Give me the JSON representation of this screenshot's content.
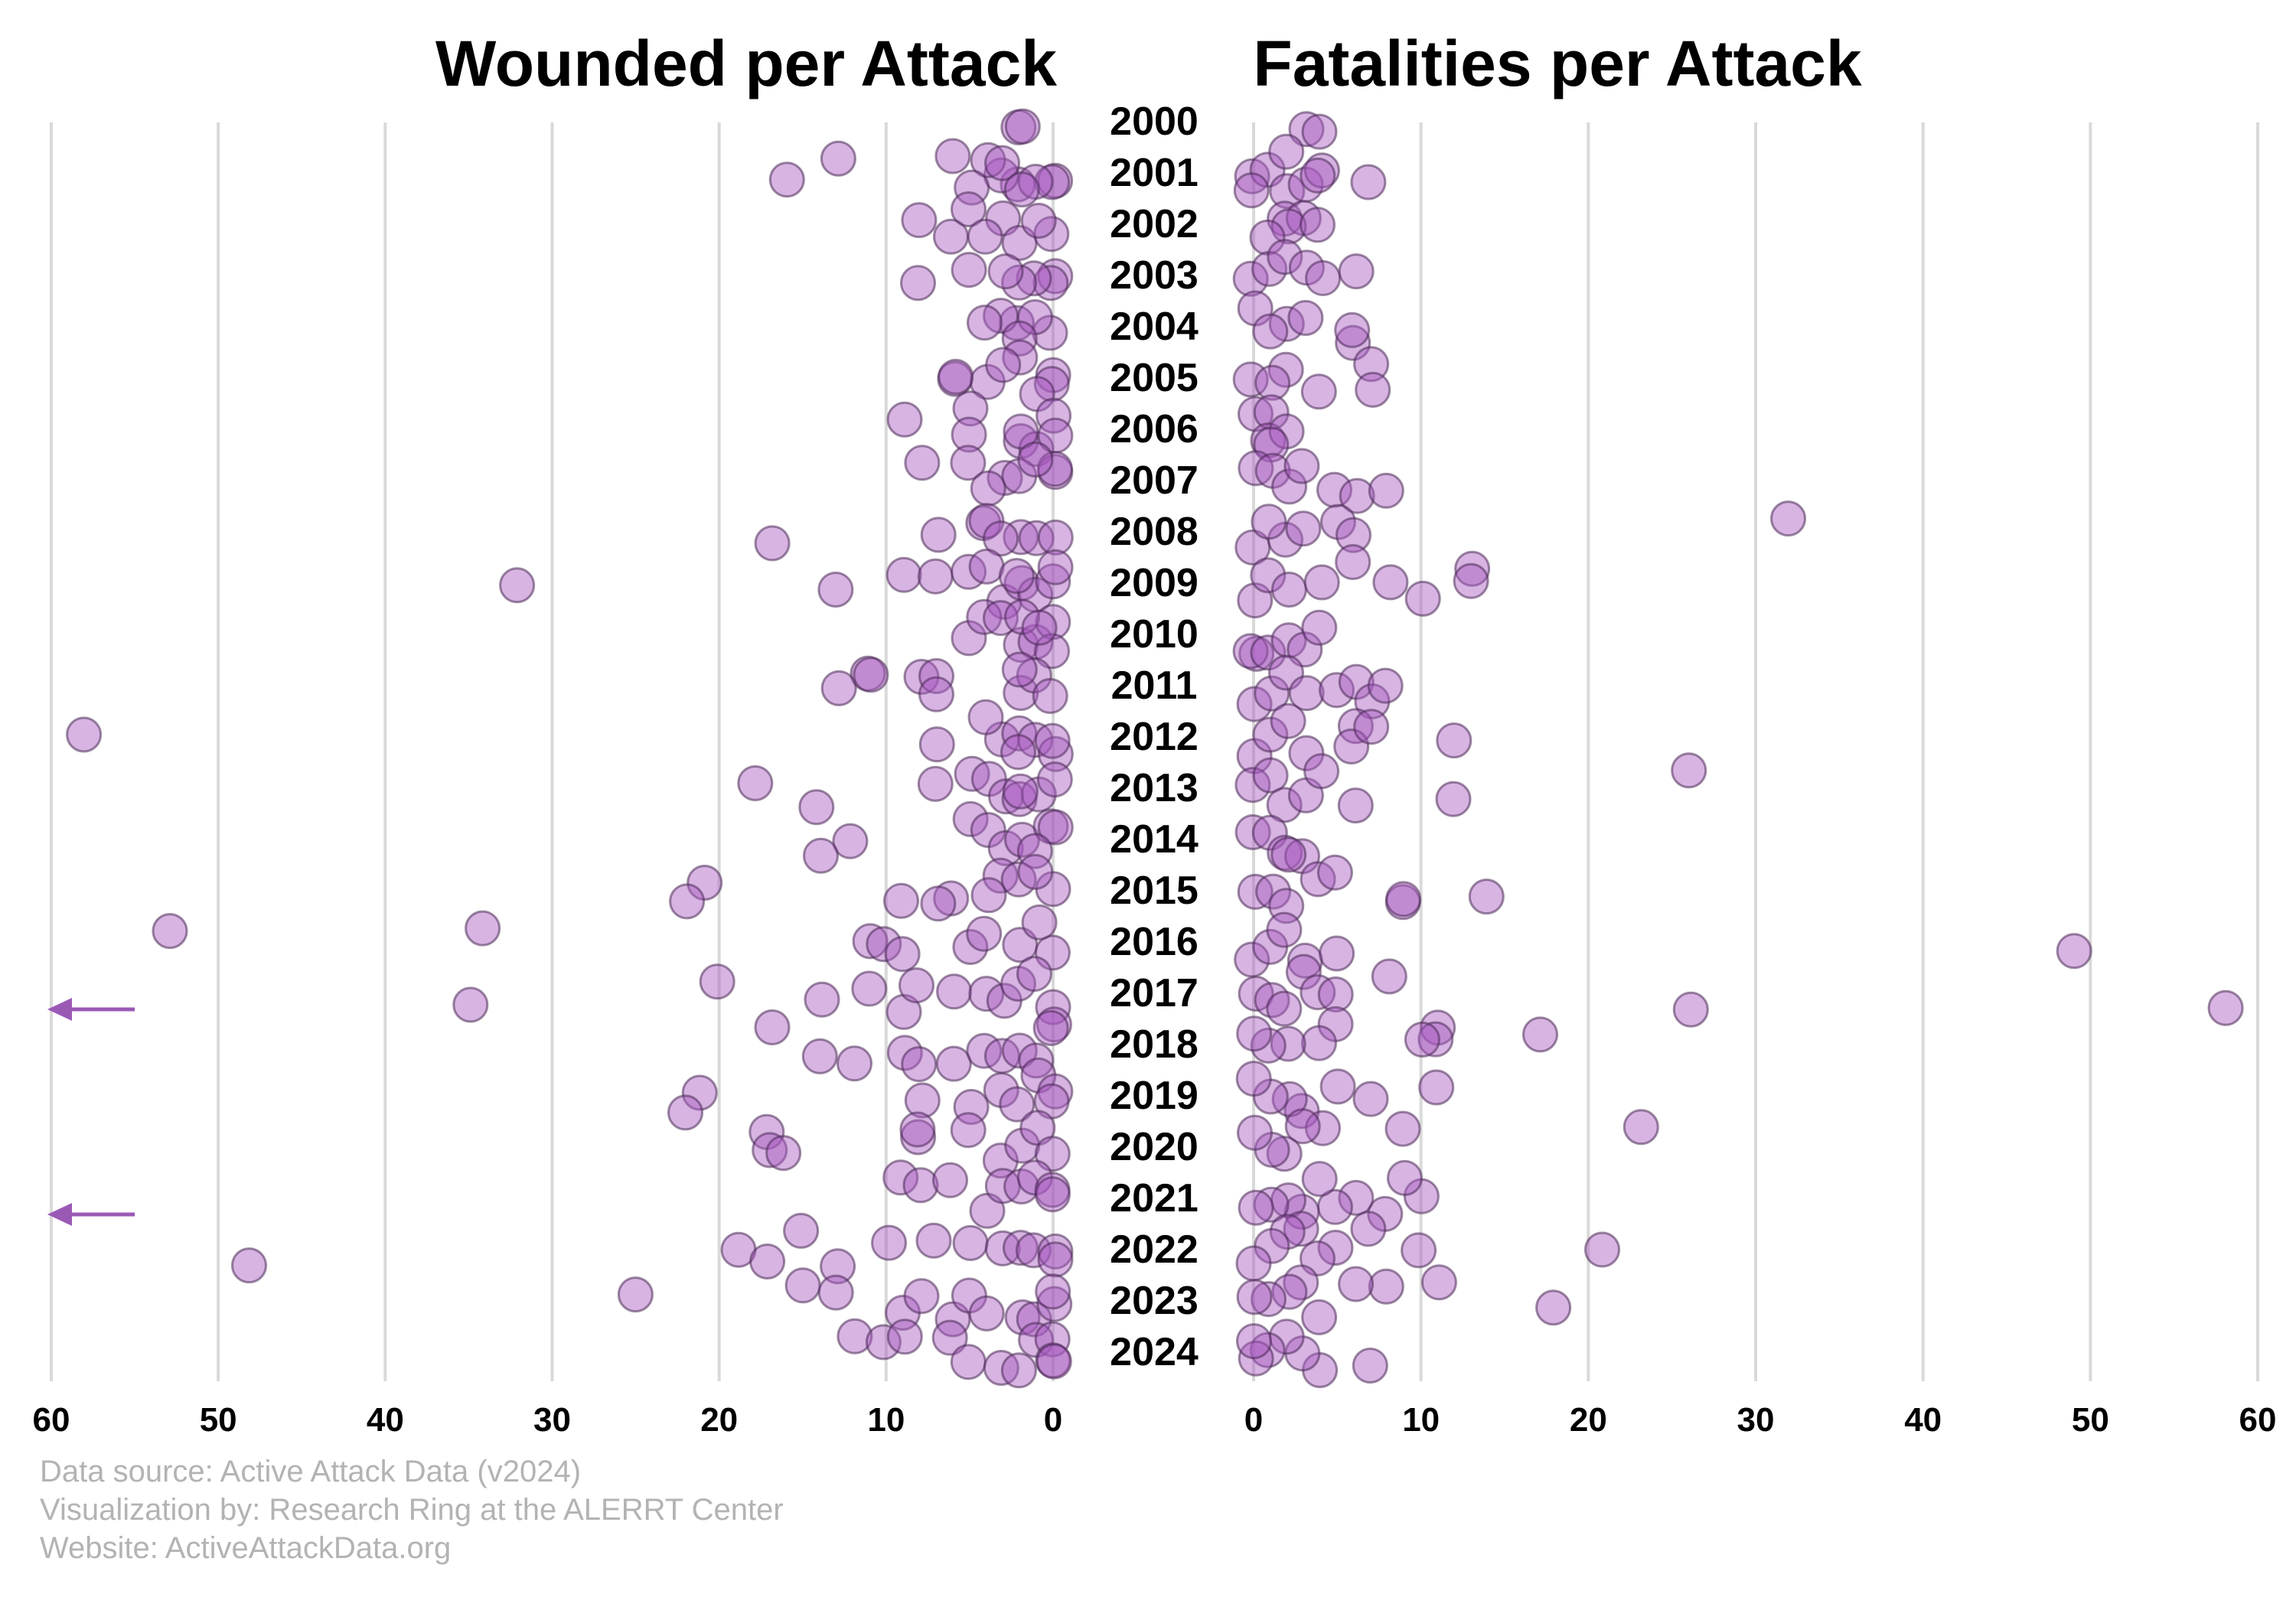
{
  "chart_data": [
    {
      "type": "scatter",
      "title": "Wounded per Attack",
      "xlabel": "",
      "ylabel": "",
      "x_direction": "reversed",
      "xlim": [
        0,
        60
      ],
      "x_ticks": [
        "60",
        "50",
        "40",
        "30",
        "20",
        "10",
        "0"
      ],
      "y_categories": [
        "2000",
        "2001",
        "2002",
        "2003",
        "2004",
        "2005",
        "2006",
        "2007",
        "2008",
        "2009",
        "2010",
        "2011",
        "2012",
        "2013",
        "2014",
        "2015",
        "2016",
        "2017",
        "2018",
        "2019",
        "2020",
        "2021",
        "2022",
        "2023",
        "2024"
      ],
      "grid": "vertical",
      "off_scale_markers": [
        {
          "year": "2017",
          "note": "value beyond 60 (arrow pointing left)"
        },
        {
          "year": "2021",
          "note": "value beyond 60 (arrow pointing left)"
        }
      ],
      "series": [
        {
          "points": [
            {
              "year": 2000,
              "values": [
                2,
                2
              ]
            },
            {
              "year": 2001,
              "values": [
                16,
                13,
                0,
                0,
                2,
                3,
                4,
                5,
                6,
                1,
                3,
                2
              ]
            },
            {
              "year": 2002,
              "values": [
                8,
                6,
                5,
                3,
                2,
                0,
                1,
                4
              ]
            },
            {
              "year": 2003,
              "values": [
                0,
                0,
                1,
                2,
                8,
                5,
                3
              ]
            },
            {
              "year": 2004,
              "values": [
                2,
                3,
                0,
                1,
                4,
                2
              ]
            },
            {
              "year": 2005,
              "values": [
                6,
                4,
                2,
                0,
                0,
                6,
                3,
                1
              ]
            },
            {
              "year": 2006,
              "values": [
                5,
                5,
                2,
                9,
                1,
                0,
                0,
                2
              ]
            },
            {
              "year": 2007,
              "values": [
                8,
                5,
                3,
                0,
                0,
                2,
                1,
                4
              ]
            },
            {
              "year": 2008,
              "values": [
                17,
                7,
                4,
                4,
                2,
                1,
                0,
                3
              ]
            },
            {
              "year": 2009,
              "values": [
                32,
                13,
                9,
                7,
                5,
                4,
                3,
                2,
                1,
                0,
                0,
                2
              ]
            },
            {
              "year": 2010,
              "values": [
                5,
                4,
                3,
                2,
                1,
                0,
                0,
                2,
                1
              ]
            },
            {
              "year": 2011,
              "values": [
                11,
                13,
                11,
                8,
                7,
                7,
                2,
                1,
                0,
                2
              ]
            },
            {
              "year": 2012,
              "values": [
                58,
                7,
                3,
                2,
                1,
                0,
                0,
                2,
                4
              ]
            },
            {
              "year": 2013,
              "values": [
                18,
                14,
                7,
                5,
                4,
                3,
                2,
                1,
                0,
                2
              ]
            },
            {
              "year": 2014,
              "values": [
                12,
                14,
                5,
                4,
                3,
                2,
                0,
                0,
                1
              ]
            },
            {
              "year": 2015,
              "values": [
                21,
                22,
                6,
                7,
                9,
                3,
                2,
                0,
                1,
                4
              ]
            },
            {
              "year": 2016,
              "values": [
                34,
                53,
                11,
                10,
                9,
                5,
                4,
                2,
                0,
                1
              ]
            },
            {
              "year": 2017,
              "values": [
                35,
                20,
                14,
                11,
                9,
                6,
                4,
                3,
                2,
                1,
                0,
                8
              ]
            },
            {
              "year": 2018,
              "values": [
                17,
                14,
                12,
                9,
                6,
                4,
                3,
                2,
                1,
                0,
                0,
                8
              ]
            },
            {
              "year": 2019,
              "values": [
                21,
                22,
                8,
                5,
                3,
                2,
                1,
                0,
                0
              ]
            },
            {
              "year": 2020,
              "values": [
                17,
                17,
                16,
                8,
                8,
                5,
                3,
                2,
                1,
                0
              ]
            },
            {
              "year": 2021,
              "values": [
                9,
                8,
                4,
                3,
                2,
                1,
                0,
                0,
                6
              ]
            },
            {
              "year": 2022,
              "values": [
                48,
                19,
                17,
                15,
                13,
                10,
                7,
                5,
                3,
                2,
                1,
                0,
                0
              ]
            },
            {
              "year": 2023,
              "values": [
                25,
                15,
                13,
                9,
                8,
                6,
                5,
                4,
                2,
                1,
                0,
                0
              ]
            },
            {
              "year": 2024,
              "values": [
                12,
                10,
                9,
                6,
                5,
                3,
                2,
                1,
                0,
                0,
                0
              ]
            }
          ]
        }
      ]
    },
    {
      "type": "scatter",
      "title": "Fatalities per Attack",
      "xlabel": "",
      "ylabel": "",
      "xlim": [
        0,
        60
      ],
      "x_ticks": [
        "0",
        "10",
        "20",
        "30",
        "40",
        "50",
        "60"
      ],
      "y_categories": [
        "2000",
        "2001",
        "2002",
        "2003",
        "2004",
        "2005",
        "2006",
        "2007",
        "2008",
        "2009",
        "2010",
        "2011",
        "2012",
        "2013",
        "2014",
        "2015",
        "2016",
        "2017",
        "2018",
        "2019",
        "2020",
        "2021",
        "2022",
        "2023",
        "2024"
      ],
      "grid": "vertical",
      "series": [
        {
          "points": [
            {
              "year": 2000,
              "values": [
                3,
                4
              ]
            },
            {
              "year": 2001,
              "values": [
                7,
                0,
                1,
                2,
                3,
                4,
                4,
                0,
                2
              ]
            },
            {
              "year": 2002,
              "values": [
                2,
                3,
                2,
                4,
                1
              ]
            },
            {
              "year": 2003,
              "values": [
                0,
                1,
                2,
                3,
                4,
                6
              ]
            },
            {
              "year": 2004,
              "values": [
                0,
                2,
                3,
                6,
                6,
                1
              ]
            },
            {
              "year": 2005,
              "values": [
                0,
                2,
                4,
                7,
                7,
                1
              ]
            },
            {
              "year": 2006,
              "values": [
                0,
                1,
                1,
                2,
                1
              ]
            },
            {
              "year": 2007,
              "values": [
                0,
                1,
                2,
                5,
                6,
                8,
                3
              ]
            },
            {
              "year": 2008,
              "values": [
                32,
                0,
                2,
                5,
                6,
                3,
                1
              ]
            },
            {
              "year": 2009,
              "values": [
                0,
                1,
                2,
                4,
                6,
                8,
                10,
                13,
                13
              ]
            },
            {
              "year": 2010,
              "values": [
                0,
                0,
                1,
                2,
                3,
                4
              ]
            },
            {
              "year": 2011,
              "values": [
                0,
                1,
                2,
                3,
                5,
                6,
                7,
                8
              ]
            },
            {
              "year": 2012,
              "values": [
                0,
                1,
                2,
                3,
                6,
                6,
                7,
                12
              ]
            },
            {
              "year": 2013,
              "values": [
                26,
                0,
                1,
                2,
                3,
                4,
                6,
                12
              ]
            },
            {
              "year": 2014,
              "values": [
                0,
                1,
                2,
                3,
                2
              ]
            },
            {
              "year": 2015,
              "values": [
                0,
                1,
                2,
                4,
                5,
                9,
                9,
                14
              ]
            },
            {
              "year": 2016,
              "values": [
                49,
                0,
                1,
                2,
                3,
                5
              ]
            },
            {
              "year": 2017,
              "values": [
                26,
                58,
                0,
                1,
                2,
                3,
                4,
                5,
                8
              ]
            },
            {
              "year": 2018,
              "values": [
                17,
                11,
                11,
                10,
                5,
                4,
                2,
                1,
                0
              ]
            },
            {
              "year": 2019,
              "values": [
                7,
                11,
                5,
                3,
                2,
                1,
                0
              ]
            },
            {
              "year": 2020,
              "values": [
                23,
                9,
                4,
                3,
                2,
                1,
                0
              ]
            },
            {
              "year": 2021,
              "values": [
                8,
                10,
                9,
                6,
                5,
                4,
                3,
                2,
                1,
                0
              ]
            },
            {
              "year": 2022,
              "values": [
                21,
                10,
                7,
                5,
                4,
                3,
                2,
                1,
                0
              ]
            },
            {
              "year": 2023,
              "values": [
                18,
                11,
                8,
                6,
                4,
                3,
                2,
                1,
                0
              ]
            },
            {
              "year": 2024,
              "values": [
                7,
                4,
                3,
                2,
                1,
                0,
                0
              ]
            }
          ]
        }
      ]
    }
  ],
  "footer": {
    "line1": "Data source: Active Attack Data (v2024)",
    "line2": "Visualization by: Research Ring at the ALERRT Center",
    "line3": "Website: ActiveAttackData.org"
  },
  "colors": {
    "dot_fill": "#a659bf",
    "dot_stroke": "#4a2a55",
    "arrow": "#9b59b6",
    "grid": "#d9d9d9",
    "credits": "#b3b3b3"
  }
}
